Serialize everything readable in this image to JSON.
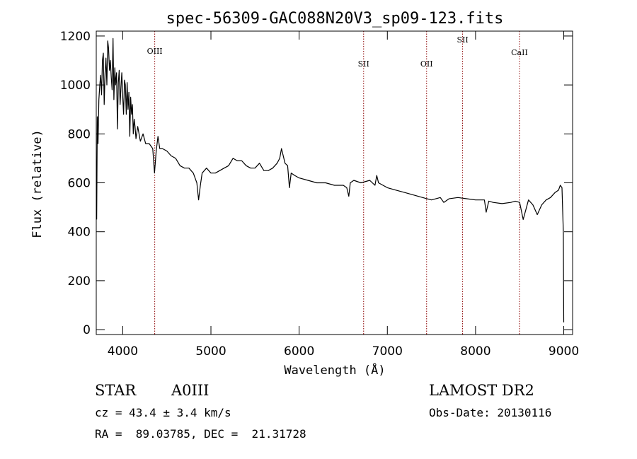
{
  "chart_data": {
    "type": "line",
    "title": "spec-56309-GAC088N20V3_sp09-123.fits",
    "xlabel": "Wavelength (Å)",
    "ylabel": "Flux (relative)",
    "xlim": [
      3700,
      9100
    ],
    "ylim": [
      -20,
      1220
    ],
    "xticks": [
      4000,
      5000,
      6000,
      7000,
      8000,
      9000
    ],
    "yticks": [
      0,
      200,
      400,
      600,
      800,
      1000,
      1200
    ],
    "grid": false,
    "colors": {
      "spectrum": "#000000",
      "lines": "#8b0000"
    },
    "spectral_lines": [
      {
        "label": "OIII",
        "wavelength": 4363
      },
      {
        "label": "SII",
        "wavelength": 6731
      },
      {
        "label": "OII",
        "wavelength": 7445
      },
      {
        "label": "SII",
        "wavelength": 7853
      },
      {
        "label": "CaII",
        "wavelength": 8498
      }
    ],
    "series": [
      {
        "x": [
          3705,
          3712,
          3720,
          3730,
          3740,
          3750,
          3760,
          3770,
          3780,
          3790,
          3800,
          3810,
          3820,
          3830,
          3840,
          3850,
          3860,
          3870,
          3880,
          3890,
          3900,
          3910,
          3920,
          3930,
          3940,
          3950,
          3960,
          3970,
          3980,
          3990,
          4000,
          4010,
          4020,
          4030,
          4040,
          4050,
          4060,
          4070,
          4080,
          4090,
          4100,
          4110,
          4120,
          4130,
          4140,
          4150,
          4170,
          4200,
          4230,
          4260,
          4300,
          4340,
          4360,
          4380,
          4400,
          4420,
          4450,
          4500,
          4550,
          4600,
          4650,
          4700,
          4750,
          4800,
          4840,
          4860,
          4880,
          4900,
          4950,
          5000,
          5050,
          5100,
          5150,
          5200,
          5250,
          5300,
          5350,
          5400,
          5450,
          5500,
          5550,
          5600,
          5650,
          5700,
          5750,
          5780,
          5800,
          5820,
          5840,
          5870,
          5890,
          5910,
          5950,
          6000,
          6100,
          6200,
          6300,
          6400,
          6500,
          6540,
          6563,
          6580,
          6620,
          6700,
          6800,
          6860,
          6880,
          6900,
          7000,
          7100,
          7200,
          7300,
          7400,
          7500,
          7600,
          7640,
          7700,
          7800,
          7900,
          8000,
          8100,
          8120,
          8150,
          8200,
          8300,
          8400,
          8450,
          8500,
          8540,
          8600,
          8650,
          8700,
          8750,
          8800,
          8850,
          8900,
          8940,
          8960,
          8980,
          8995,
          9000
        ],
        "values": [
          450,
          870,
          760,
          940,
          1000,
          1040,
          960,
          1100,
          1130,
          920,
          1050,
          1110,
          1000,
          1180,
          1150,
          1060,
          1100,
          1030,
          980,
          1190,
          940,
          1070,
          1000,
          1050,
          820,
          1010,
          1060,
          920,
          990,
          1050,
          950,
          880,
          1020,
          1000,
          880,
          1010,
          900,
          970,
          790,
          950,
          880,
          920,
          800,
          860,
          830,
          780,
          830,
          770,
          800,
          760,
          760,
          740,
          640,
          730,
          790,
          740,
          740,
          730,
          710,
          700,
          670,
          660,
          660,
          640,
          600,
          530,
          590,
          640,
          660,
          640,
          640,
          650,
          660,
          670,
          700,
          690,
          690,
          670,
          660,
          660,
          680,
          650,
          650,
          660,
          680,
          700,
          740,
          710,
          680,
          670,
          580,
          640,
          630,
          620,
          610,
          600,
          600,
          590,
          590,
          580,
          545,
          600,
          610,
          600,
          610,
          590,
          630,
          600,
          580,
          570,
          560,
          550,
          540,
          530,
          540,
          520,
          535,
          540,
          535,
          530,
          530,
          480,
          525,
          520,
          515,
          520,
          525,
          520,
          450,
          530,
          510,
          470,
          510,
          530,
          540,
          560,
          570,
          590,
          580,
          400,
          30
        ]
      }
    ]
  },
  "info": {
    "object_class": "STAR",
    "subclass": "A0III",
    "survey": "LAMOST DR2",
    "cz": "cz = 43.4 ± 3.4 km/s",
    "obs_date": "Obs-Date: 20130116",
    "coords": "RA =  89.03785, DEC =  21.31728"
  }
}
